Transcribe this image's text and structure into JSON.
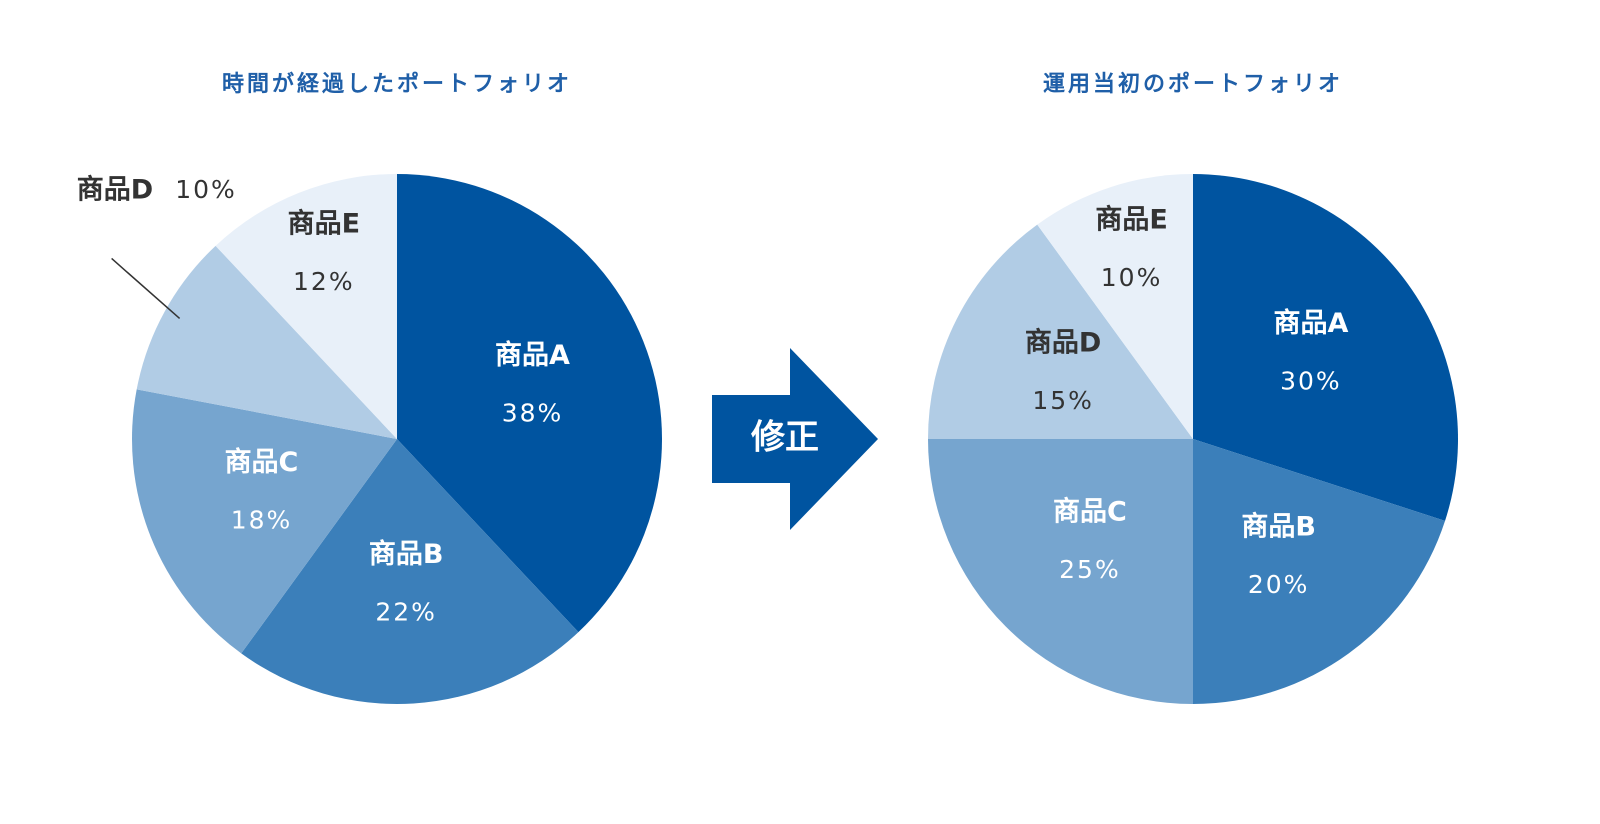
{
  "chart_data": [
    {
      "type": "pie",
      "title": "時間が経過したポートフォリオ",
      "categories": [
        "商品A",
        "商品B",
        "商品C",
        "商品D",
        "商品E"
      ],
      "values": [
        38,
        22,
        18,
        10,
        12
      ],
      "value_labels": [
        "38%",
        "22%",
        "18%",
        "10%",
        "12%"
      ],
      "colors": [
        "#0054a0",
        "#3b7fba",
        "#76a5cf",
        "#b1cce5",
        "#e8f0f9"
      ]
    },
    {
      "type": "pie",
      "title": "運用当初のポートフォリオ",
      "categories": [
        "商品A",
        "商品B",
        "商品C",
        "商品D",
        "商品E"
      ],
      "values": [
        30,
        20,
        25,
        15,
        10
      ],
      "value_labels": [
        "30%",
        "20%",
        "25%",
        "15%",
        "10%"
      ],
      "colors": [
        "#0054a0",
        "#3b7fba",
        "#76a5cf",
        "#b1cce5",
        "#e8f0f9"
      ]
    }
  ],
  "arrow_label": "修正"
}
